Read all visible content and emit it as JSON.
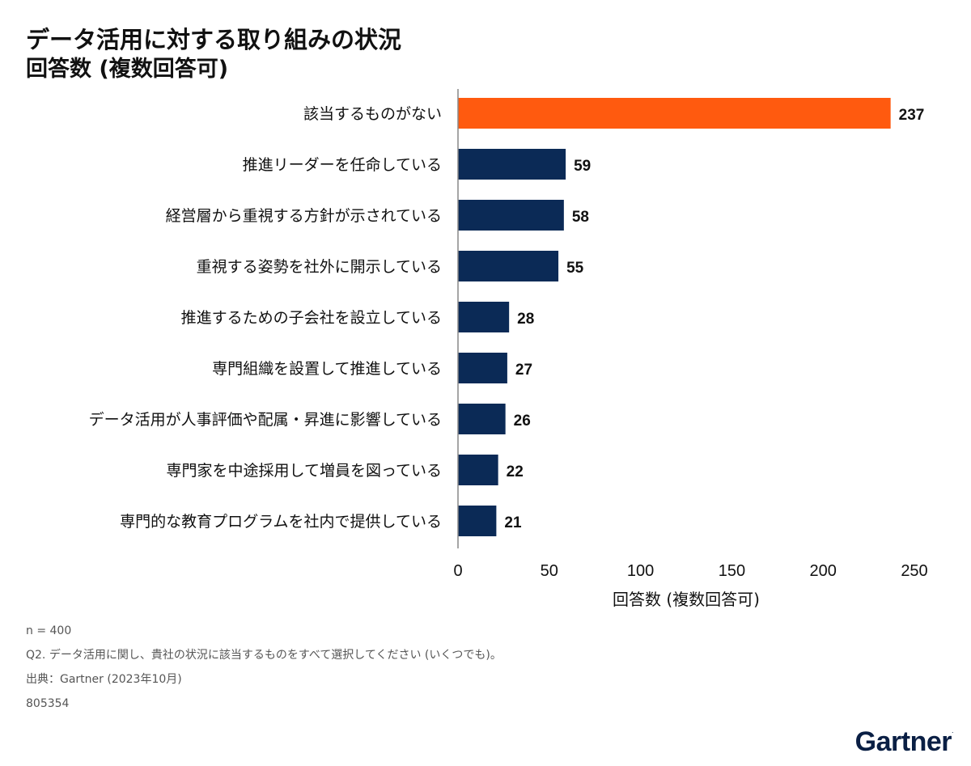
{
  "title": "データ活用に対する取り組みの状況",
  "subtitle": "回答数 (複数回答可)",
  "colors": {
    "highlight": "#ff5a0f",
    "bar": "#0b2a56",
    "axis": "#888888"
  },
  "chart_data": {
    "type": "bar",
    "orientation": "horizontal",
    "categories": [
      "該当するものがない",
      "推進リーダーを任命している",
      "経営層から重視する方針が示されている",
      "重視する姿勢を社外に開示している",
      "推進するための子会社を設立している",
      "専門組織を設置して推進している",
      "データ活用が人事評価や配属・昇進に影響している",
      "専門家を中途採用して増員を図っている",
      "専門的な教育プログラムを社内で提供している"
    ],
    "values": [
      237,
      59,
      58,
      55,
      28,
      27,
      26,
      22,
      21
    ],
    "highlight_index": 0,
    "xlabel": "回答数 (複数回答可)",
    "xlim": [
      0,
      250
    ],
    "xticks": [
      0,
      50,
      100,
      150,
      200,
      250
    ],
    "grid": false,
    "data_labels": true
  },
  "notes": [
    "n = 400",
    "Q2. データ活用に関し、貴社の状況に該当するものをすべて選択してください (いくつでも)。",
    "出典：Gartner (2023年10月)",
    "805354"
  ],
  "brand": "Gartner"
}
